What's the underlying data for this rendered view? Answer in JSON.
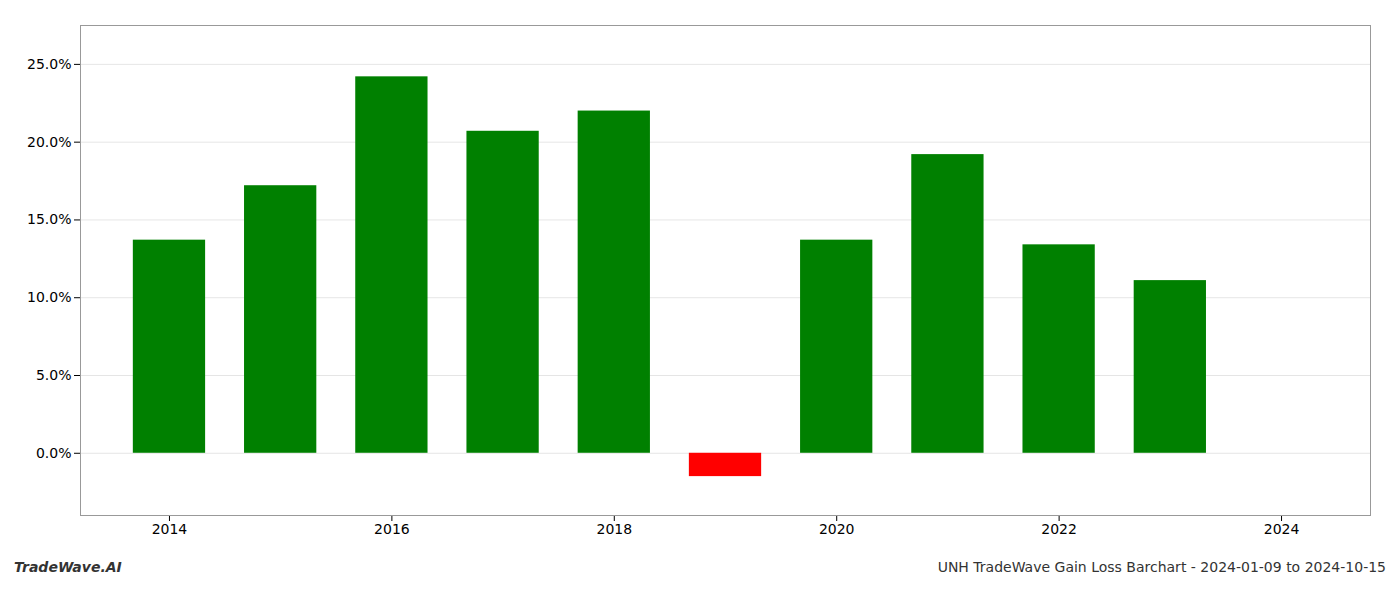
{
  "chart_data": {
    "type": "bar",
    "title": "UNH TradeWave Gain Loss Barchart - 2024-01-09 to 2024-10-15",
    "annotations": [
      "TradeWave.AI"
    ],
    "x": [
      2014,
      2015,
      2016,
      2017,
      2018,
      2019,
      2020,
      2021,
      2022,
      2023
    ],
    "values": [
      0.137,
      0.172,
      0.242,
      0.207,
      0.22,
      -0.015,
      0.137,
      0.192,
      0.134,
      0.111
    ],
    "colors": [
      "#008000",
      "#008000",
      "#008000",
      "#008000",
      "#008000",
      "#ff0000",
      "#008000",
      "#008000",
      "#008000",
      "#008000"
    ],
    "xlim": [
      2013.2,
      2024.8
    ],
    "xticks": [
      2014,
      2016,
      2018,
      2020,
      2022,
      2024
    ],
    "ylim": [
      -0.04,
      0.275
    ],
    "yticks": [
      {
        "value": 0.0,
        "label": "0.0%"
      },
      {
        "value": 0.05,
        "label": "5.0%"
      },
      {
        "value": 0.1,
        "label": "10.0%"
      },
      {
        "value": 0.15,
        "label": "15.0%"
      },
      {
        "value": 0.2,
        "label": "20.0%"
      },
      {
        "value": 0.25,
        "label": "25.0%"
      }
    ],
    "grid": true
  }
}
